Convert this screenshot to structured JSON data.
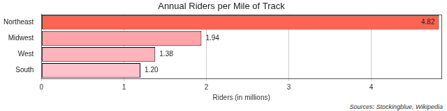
{
  "chart_data": {
    "type": "bar",
    "orientation": "horizontal",
    "title": "Annual Riders per Mile of Track",
    "x_label": "Riders (in millions)",
    "annotations": [
      "Sources: Stockingblue, Wikipedia"
    ],
    "categories": [
      "Northeast",
      "Midwest",
      "West",
      "South"
    ],
    "values": [
      4.82,
      1.94,
      1.38,
      1.2
    ],
    "value_labels": [
      "4.82",
      "1.94",
      "1.38",
      "1.20"
    ],
    "colors": [
      "#ff6450",
      "#ffa3a8",
      "#ffb3ba",
      "#ffc2cc"
    ],
    "xlim": [
      0,
      4.85
    ],
    "xticks": [
      0,
      1,
      2,
      3,
      4
    ],
    "grid": true,
    "data_labels": true
  }
}
